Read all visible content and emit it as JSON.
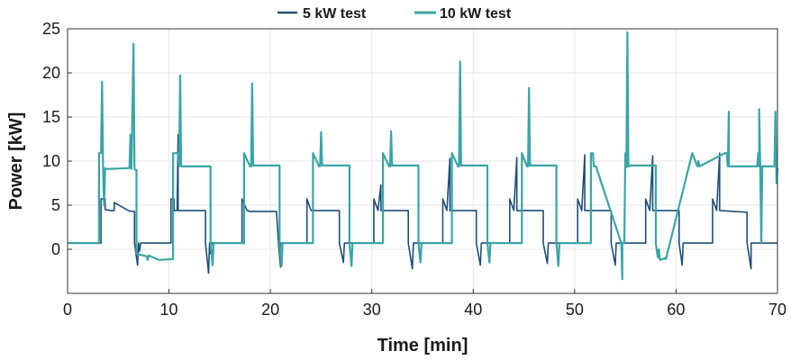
{
  "chart_data": {
    "type": "line",
    "title": "",
    "xlabel": "Time [min]",
    "ylabel": "Power [kW]",
    "xlim": [
      0,
      70
    ],
    "ylim": [
      -5,
      25
    ],
    "xticks": [
      0,
      10,
      20,
      30,
      40,
      50,
      60,
      70
    ],
    "yticks": [
      0,
      5,
      10,
      15,
      20,
      25
    ],
    "grid": true,
    "legend": {
      "placement": "top-center",
      "entries": [
        "5 kW test",
        "10 kW test"
      ]
    },
    "series": [
      {
        "name": "5 kW test",
        "color": "#1f4e79",
        "x": [
          0,
          3.3,
          3.3,
          3.7,
          3.7,
          4.3,
          4.6,
          4.6,
          6.0,
          6.3,
          6.6,
          6.6,
          6.9,
          7.0,
          7.1,
          7.2,
          7.2,
          10.2,
          10.2,
          10.5,
          10.5,
          10.8,
          10.9,
          10.9,
          13.6,
          13.6,
          13.9,
          14.0,
          14.1,
          14.2,
          14.2,
          17.2,
          17.2,
          17.7,
          17.8,
          17.9,
          20.6,
          20.8,
          21.0,
          21.0,
          23.6,
          23.6,
          24.0,
          24.2,
          24.2,
          26.8,
          26.8,
          27.2,
          27.3,
          27.4,
          30.2,
          30.2,
          30.6,
          30.9,
          30.9,
          33.6,
          33.6,
          34.0,
          34.1,
          34.2,
          37.0,
          37.0,
          37.4,
          37.7,
          37.7,
          40.3,
          40.3,
          40.7,
          40.8,
          40.9,
          43.6,
          43.6,
          44.0,
          44.3,
          44.3,
          46.9,
          46.9,
          47.3,
          47.4,
          47.5,
          50.3,
          50.3,
          50.7,
          51.0,
          51.0,
          53.6,
          53.6,
          54.0,
          54.1,
          54.2,
          57.0,
          57.0,
          57.4,
          57.7,
          57.7,
          60.3,
          60.3,
          60.6,
          60.7,
          60.8,
          63.6,
          63.6,
          64.0,
          64.3,
          64.3,
          67.0,
          67.0,
          67.4,
          67.4,
          67.5,
          70
        ],
        "y": [
          0.7,
          0.7,
          5.7,
          5.7,
          4.5,
          4.4,
          4.4,
          5.3,
          4.4,
          4.3,
          4.3,
          0.7,
          -1.8,
          0.7,
          -0.2,
          0.7,
          0.7,
          0.7,
          5.7,
          5.7,
          4.4,
          4.4,
          13.0,
          4.4,
          4.4,
          0.7,
          -2.7,
          0.7,
          -0.5,
          0.7,
          0.7,
          0.7,
          5.7,
          4.4,
          4.4,
          4.3,
          4.3,
          0.7,
          -2.0,
          0.7,
          0.7,
          5.7,
          4.4,
          4.4,
          4.4,
          4.4,
          0.7,
          -1.5,
          0.7,
          0.7,
          0.7,
          5.7,
          4.4,
          7.3,
          4.4,
          4.4,
          0.7,
          -2.2,
          0.7,
          0.7,
          0.7,
          5.7,
          4.4,
          10.3,
          4.4,
          4.4,
          0.7,
          -1.8,
          0.7,
          0.7,
          0.7,
          5.7,
          4.4,
          10.4,
          4.4,
          4.4,
          0.7,
          -1.6,
          0.7,
          0.7,
          0.7,
          5.7,
          4.4,
          10.7,
          4.4,
          4.4,
          0.7,
          -1.8,
          0.7,
          0.7,
          0.7,
          5.7,
          4.4,
          10.6,
          4.4,
          4.4,
          0.7,
          -1.8,
          0.7,
          0.7,
          0.7,
          5.7,
          4.4,
          10.9,
          4.4,
          4.2,
          0.7,
          -2.2,
          0.7,
          0.7,
          0.7
        ]
      },
      {
        "name": "10 kW test",
        "color": "#3aa5a6",
        "x": [
          0,
          3.1,
          3.1,
          3.3,
          3.4,
          3.5,
          3.6,
          3.7,
          3.7,
          6.1,
          6.2,
          6.3,
          6.5,
          6.6,
          6.7,
          6.8,
          6.8,
          7.8,
          7.9,
          8.0,
          9.0,
          10.4,
          10.4,
          10.9,
          11.0,
          11.1,
          11.2,
          11.3,
          11.3,
          14.1,
          14.1,
          14.3,
          14.4,
          14.4,
          17.4,
          17.4,
          18.0,
          18.1,
          18.2,
          18.3,
          18.3,
          20.9,
          20.9,
          21.1,
          21.2,
          21.2,
          24.2,
          24.2,
          24.8,
          24.9,
          25.0,
          25.1,
          25.1,
          27.8,
          27.8,
          28.0,
          28.1,
          28.1,
          31.1,
          31.1,
          31.7,
          31.8,
          31.9,
          32.0,
          32.0,
          34.6,
          34.6,
          34.8,
          34.9,
          34.9,
          37.9,
          37.9,
          38.5,
          38.6,
          38.7,
          38.8,
          38.8,
          41.4,
          41.4,
          41.6,
          41.7,
          41.7,
          44.8,
          44.8,
          45.3,
          45.4,
          45.5,
          45.6,
          45.6,
          48.2,
          48.2,
          48.4,
          48.5,
          48.5,
          51.6,
          51.6,
          51.8,
          51.9,
          52.0,
          52.1,
          52.1,
          54.6,
          54.7,
          54.7,
          54.9,
          55.0,
          55.1,
          55.2,
          55.3,
          55.4,
          55.4,
          58.0,
          58.0,
          58.2,
          58.3,
          58.4,
          59.0,
          59.0,
          61.6,
          61.6,
          62.1,
          62.2,
          62.3,
          62.3,
          64.8,
          65.0,
          65.1,
          65.2,
          65.2,
          65.4,
          65.4,
          68.0,
          68.1,
          68.2,
          68.2,
          68.3,
          68.4,
          68.5,
          68.6,
          69.7,
          69.8,
          69.9,
          70
        ],
        "y": [
          0.7,
          0.7,
          10.9,
          10.9,
          19.0,
          9.3,
          5.0,
          9.2,
          9.1,
          9.2,
          13.0,
          9.1,
          23.3,
          9.1,
          9.0,
          9.0,
          -0.5,
          -0.8,
          -1.2,
          -0.7,
          -1.2,
          -1.1,
          10.9,
          10.9,
          9.4,
          19.7,
          9.4,
          9.4,
          9.4,
          9.4,
          0.7,
          -1.8,
          0.7,
          0.7,
          0.7,
          10.9,
          9.4,
          9.4,
          18.8,
          9.5,
          9.5,
          9.5,
          0.7,
          -1.9,
          0.7,
          0.7,
          0.7,
          10.9,
          9.4,
          9.4,
          13.3,
          9.5,
          9.5,
          9.5,
          0.7,
          -1.9,
          0.7,
          0.7,
          0.7,
          10.9,
          9.4,
          9.4,
          13.4,
          9.5,
          9.5,
          9.5,
          0.7,
          -1.5,
          0.7,
          0.7,
          0.7,
          10.9,
          9.4,
          9.4,
          21.3,
          9.5,
          9.5,
          9.5,
          0.7,
          -1.5,
          0.7,
          0.7,
          0.7,
          10.9,
          9.4,
          9.4,
          18.3,
          9.5,
          9.5,
          9.5,
          0.7,
          -1.9,
          0.7,
          0.7,
          0.7,
          10.9,
          10.9,
          9.4,
          9.4,
          9.4,
          9.4,
          0.7,
          -3.4,
          0.7,
          0.7,
          10.9,
          9.3,
          24.6,
          9.4,
          9.4,
          9.5,
          9.5,
          0.7,
          -0.9,
          0.0,
          -1.2,
          -1.0,
          -1.1,
          10.9,
          10.9,
          9.4,
          10.0,
          9.4,
          9.4,
          10.9,
          10.9,
          9.4,
          15.6,
          9.4,
          9.4,
          9.4,
          9.4,
          10.9,
          9.4,
          15.9,
          9.3,
          0.7,
          9.4,
          9.4,
          9.4,
          15.6,
          7.5,
          9.2
        ]
      }
    ]
  }
}
